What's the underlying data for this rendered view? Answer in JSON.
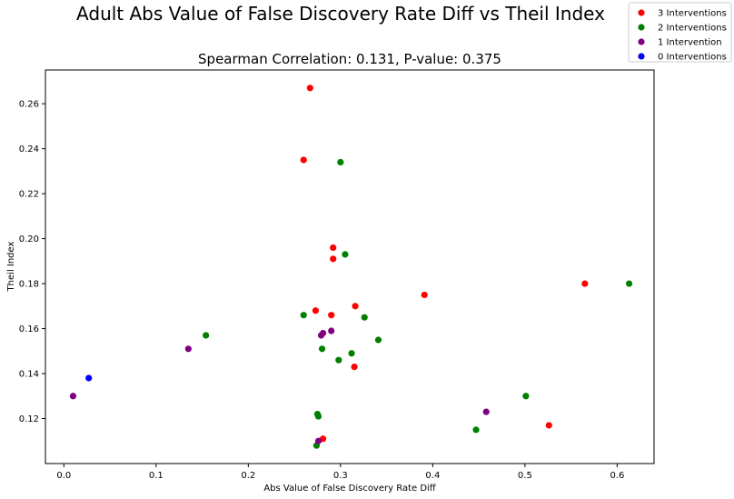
{
  "chart_data": {
    "type": "scatter",
    "suptitle": "Adult Abs Value of False Discovery Rate Diff vs Theil Index",
    "title": "Spearman Correlation: 0.131, P-value: 0.375",
    "xlabel": "Abs Value of False Discovery Rate Diff",
    "ylabel": "Theil Index",
    "xlim": [
      -0.02,
      0.64
    ],
    "ylim": [
      0.1,
      0.275
    ],
    "xticks": [
      0.0,
      0.1,
      0.2,
      0.3,
      0.4,
      0.5,
      0.6
    ],
    "xtick_labels": [
      "0.0",
      "0.1",
      "0.2",
      "0.3",
      "0.4",
      "0.5",
      "0.6"
    ],
    "yticks": [
      0.12,
      0.14,
      0.16,
      0.18,
      0.2,
      0.22,
      0.24,
      0.26
    ],
    "ytick_labels": [
      "0.12",
      "0.14",
      "0.16",
      "0.18",
      "0.20",
      "0.22",
      "0.24",
      "0.26"
    ],
    "grid": false,
    "legend_position": "top-right",
    "series": [
      {
        "name": "3 Interventions",
        "color": "#ff0000",
        "points": [
          [
            0.267,
            0.267
          ],
          [
            0.26,
            0.235
          ],
          [
            0.292,
            0.196
          ],
          [
            0.292,
            0.191
          ],
          [
            0.316,
            0.17
          ],
          [
            0.391,
            0.175
          ],
          [
            0.565,
            0.18
          ],
          [
            0.273,
            0.168
          ],
          [
            0.29,
            0.166
          ],
          [
            0.315,
            0.143
          ],
          [
            0.526,
            0.117
          ],
          [
            0.281,
            0.111
          ]
        ]
      },
      {
        "name": "2 Interventions",
        "color": "#008000",
        "points": [
          [
            0.3,
            0.234
          ],
          [
            0.305,
            0.193
          ],
          [
            0.613,
            0.18
          ],
          [
            0.26,
            0.166
          ],
          [
            0.326,
            0.165
          ],
          [
            0.154,
            0.157
          ],
          [
            0.341,
            0.155
          ],
          [
            0.28,
            0.151
          ],
          [
            0.312,
            0.149
          ],
          [
            0.298,
            0.146
          ],
          [
            0.501,
            0.13
          ],
          [
            0.275,
            0.122
          ],
          [
            0.276,
            0.121
          ],
          [
            0.447,
            0.115
          ],
          [
            0.274,
            0.108
          ]
        ]
      },
      {
        "name": "1 Intervention",
        "color": "#800080",
        "points": [
          [
            0.29,
            0.159
          ],
          [
            0.281,
            0.158
          ],
          [
            0.279,
            0.157
          ],
          [
            0.135,
            0.151
          ],
          [
            0.01,
            0.13
          ],
          [
            0.458,
            0.123
          ],
          [
            0.276,
            0.11
          ]
        ]
      },
      {
        "name": "0 Interventions",
        "color": "#0000ff",
        "points": [
          [
            0.027,
            0.138
          ]
        ]
      }
    ]
  }
}
